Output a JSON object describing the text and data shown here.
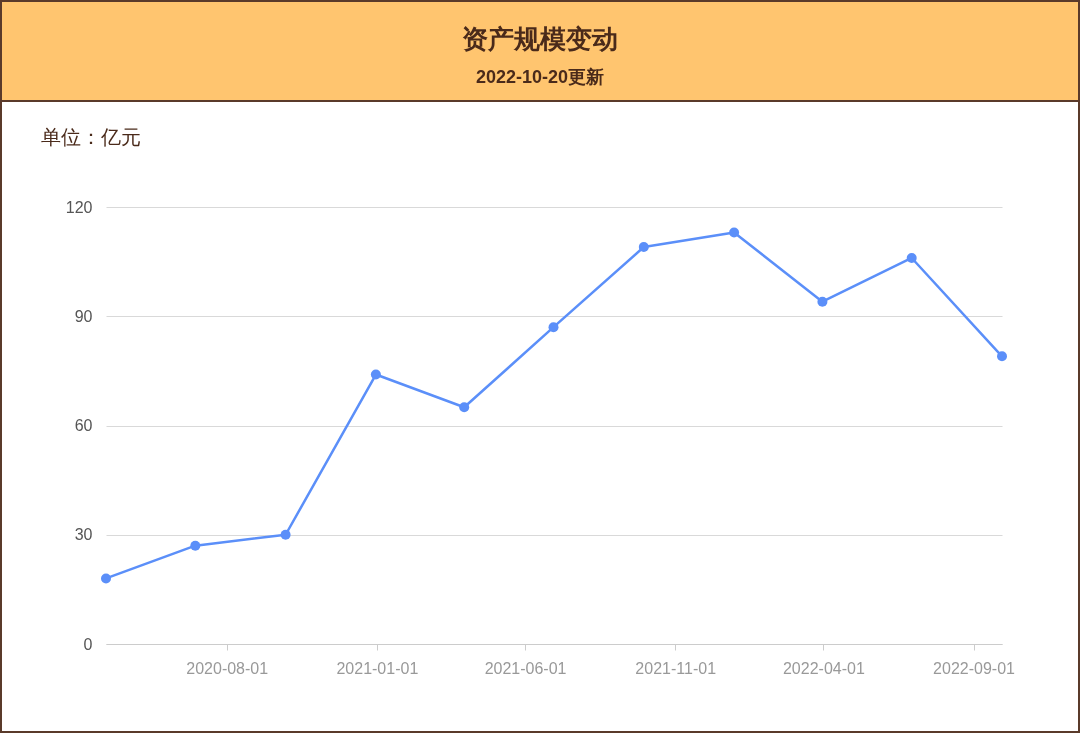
{
  "chart_data": {
    "type": "line",
    "title": "资产规模变动",
    "subtitle": "2022-10-20更新",
    "ylabel": "单位：亿元",
    "x": [
      "2020-03-31",
      "2020-06-30",
      "2020-09-30",
      "2020-12-31",
      "2021-03-31",
      "2021-06-30",
      "2021-09-30",
      "2021-12-31",
      "2022-03-31",
      "2022-06-30",
      "2022-09-30"
    ],
    "series": [
      {
        "color": "#5b8ff9",
        "values": [
          18,
          27,
          30,
          74,
          65,
          87,
          109,
          113,
          94,
          106,
          79
        ]
      }
    ],
    "xlim": [
      "2020-03-31",
      "2022-09-30"
    ],
    "xticks": [
      "2020-08-01",
      "2021-01-01",
      "2021-06-01",
      "2021-11-01",
      "2022-04-01",
      "2022-09-01"
    ],
    "ylim": [
      0,
      120
    ],
    "yticks": [
      0,
      30,
      60,
      90,
      120
    ],
    "grid": "y",
    "marker": "circle",
    "line_style": "solid"
  }
}
